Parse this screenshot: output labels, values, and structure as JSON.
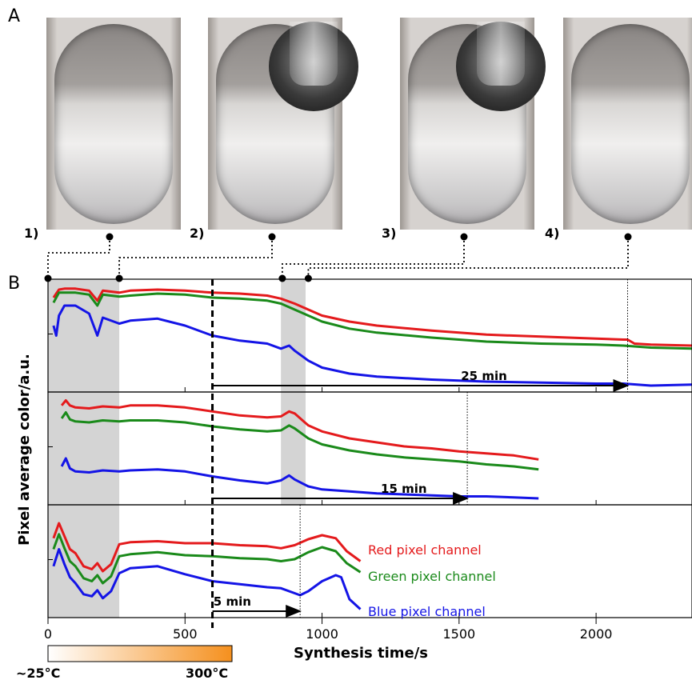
{
  "panel_labels": {
    "a": "A",
    "b": "B"
  },
  "photos": [
    {
      "label": "1)",
      "time": 137
    },
    {
      "label": "2)",
      "time": 260
    },
    {
      "label": "3)",
      "time": 855
    },
    {
      "label": "4)",
      "time": 950
    }
  ],
  "colors": {
    "red": "#e41a1c",
    "green": "#1a8a1a",
    "blue": "#1414e6",
    "shade": "#d4d4d4",
    "heat_start": "#ffffff",
    "heat_end": "#f5901e"
  },
  "legend": {
    "red": "Red pixel channel",
    "green": "Green pixel channel",
    "blue": "Blue pixel channel"
  },
  "heat_bar": {
    "low": "~25°C",
    "high": "300°C"
  },
  "chart_data": {
    "type": "line",
    "xlabel": "Synthesis time/s",
    "ylabel": "Pixel average color/a.u.",
    "xlim": [
      0,
      2350
    ],
    "xticks": [
      0,
      500,
      1000,
      1500,
      2000
    ],
    "dashed_marker": 600,
    "shaded_regions": [
      [
        0,
        260
      ],
      [
        850,
        940
      ]
    ],
    "panels": [
      {
        "annotation": "25 min",
        "arrow": [
          600,
          2115
        ],
        "dotted": 2115,
        "series": [
          {
            "name": "Red pixel channel",
            "x": [
              20,
              40,
              60,
              100,
              150,
              180,
              200,
              260,
              300,
              400,
              500,
              600,
              700,
              800,
              850,
              900,
              950,
              1000,
              1100,
              1200,
              1400,
              1600,
              1800,
              2000,
              2100,
              2115,
              2140,
              2200,
              2350
            ],
            "y": [
              0.88,
              0.96,
              0.97,
              0.97,
              0.95,
              0.85,
              0.95,
              0.93,
              0.95,
              0.96,
              0.95,
              0.93,
              0.92,
              0.9,
              0.87,
              0.82,
              0.76,
              0.7,
              0.64,
              0.6,
              0.55,
              0.51,
              0.49,
              0.47,
              0.46,
              0.46,
              0.42,
              0.41,
              0.4
            ]
          },
          {
            "name": "Green pixel channel",
            "x": [
              20,
              40,
              60,
              100,
              150,
              180,
              200,
              260,
              300,
              400,
              500,
              600,
              700,
              800,
              850,
              900,
              950,
              1000,
              1100,
              1200,
              1400,
              1600,
              1800,
              2000,
              2100,
              2200,
              2350
            ],
            "y": [
              0.83,
              0.93,
              0.93,
              0.93,
              0.91,
              0.8,
              0.91,
              0.89,
              0.9,
              0.92,
              0.91,
              0.88,
              0.87,
              0.85,
              0.82,
              0.76,
              0.7,
              0.64,
              0.57,
              0.53,
              0.48,
              0.44,
              0.42,
              0.41,
              0.4,
              0.38,
              0.37
            ]
          },
          {
            "name": "Blue pixel channel",
            "x": [
              20,
              30,
              40,
              60,
              100,
              150,
              180,
              200,
              260,
              300,
              400,
              500,
              600,
              700,
              800,
              850,
              880,
              900,
              950,
              1000,
              1100,
              1200,
              1400,
              1600,
              1800,
              2000,
              2100,
              2200,
              2350
            ],
            "y": [
              0.6,
              0.5,
              0.7,
              0.8,
              0.8,
              0.72,
              0.5,
              0.68,
              0.62,
              0.65,
              0.67,
              0.6,
              0.5,
              0.45,
              0.42,
              0.37,
              0.4,
              0.35,
              0.25,
              0.18,
              0.12,
              0.09,
              0.06,
              0.04,
              0.03,
              0.02,
              0.02,
              0.0,
              0.01
            ]
          }
        ]
      },
      {
        "annotation": "15 min",
        "arrow": [
          600,
          1530
        ],
        "dotted": 1530,
        "series": [
          {
            "name": "Red pixel channel",
            "x": [
              50,
              65,
              80,
              100,
              150,
              200,
              260,
              300,
              400,
              500,
              600,
              700,
              800,
              850,
              880,
              900,
              950,
              1000,
              1100,
              1200,
              1300,
              1400,
              1500,
              1600,
              1700,
              1790
            ],
            "y": [
              0.93,
              0.98,
              0.93,
              0.91,
              0.9,
              0.92,
              0.91,
              0.93,
              0.93,
              0.91,
              0.87,
              0.83,
              0.81,
              0.82,
              0.87,
              0.85,
              0.73,
              0.67,
              0.6,
              0.56,
              0.52,
              0.5,
              0.47,
              0.45,
              0.43,
              0.39
            ]
          },
          {
            "name": "Green pixel channel",
            "x": [
              50,
              65,
              80,
              100,
              150,
              200,
              260,
              300,
              400,
              500,
              600,
              700,
              800,
              850,
              880,
              900,
              950,
              1000,
              1100,
              1200,
              1300,
              1400,
              1500,
              1600,
              1700,
              1790
            ],
            "y": [
              0.8,
              0.86,
              0.79,
              0.77,
              0.76,
              0.78,
              0.77,
              0.78,
              0.78,
              0.76,
              0.72,
              0.69,
              0.67,
              0.68,
              0.73,
              0.7,
              0.6,
              0.54,
              0.48,
              0.44,
              0.41,
              0.39,
              0.37,
              0.34,
              0.32,
              0.29
            ]
          },
          {
            "name": "Blue pixel channel",
            "x": [
              50,
              65,
              80,
              100,
              150,
              200,
              260,
              300,
              400,
              500,
              600,
              700,
              800,
              850,
              880,
              900,
              950,
              1000,
              1100,
              1200,
              1300,
              1400,
              1500,
              1600,
              1700,
              1790
            ],
            "y": [
              0.32,
              0.4,
              0.3,
              0.27,
              0.26,
              0.28,
              0.27,
              0.28,
              0.29,
              0.27,
              0.22,
              0.18,
              0.15,
              0.18,
              0.23,
              0.19,
              0.12,
              0.09,
              0.07,
              0.05,
              0.04,
              0.03,
              0.02,
              0.02,
              0.01,
              0.0
            ]
          }
        ]
      },
      {
        "annotation": "5 min",
        "arrow": [
          600,
          920
        ],
        "dotted": 920,
        "series": [
          {
            "name": "Red pixel channel",
            "x": [
              20,
              40,
              60,
              80,
              100,
              130,
              160,
              180,
              200,
              230,
              260,
              300,
              400,
              500,
              600,
              700,
              800,
              850,
              900,
              950,
              1000,
              1050,
              1090,
              1140
            ],
            "y": [
              0.73,
              0.88,
              0.75,
              0.62,
              0.58,
              0.45,
              0.42,
              0.48,
              0.4,
              0.47,
              0.67,
              0.69,
              0.7,
              0.68,
              0.68,
              0.66,
              0.65,
              0.63,
              0.66,
              0.72,
              0.76,
              0.73,
              0.6,
              0.5
            ]
          },
          {
            "name": "Green pixel channel",
            "x": [
              20,
              40,
              60,
              80,
              100,
              130,
              160,
              180,
              200,
              230,
              260,
              300,
              400,
              500,
              600,
              700,
              800,
              850,
              900,
              950,
              1000,
              1050,
              1090,
              1140
            ],
            "y": [
              0.62,
              0.77,
              0.63,
              0.5,
              0.45,
              0.33,
              0.3,
              0.36,
              0.28,
              0.35,
              0.55,
              0.57,
              0.59,
              0.56,
              0.55,
              0.53,
              0.52,
              0.5,
              0.52,
              0.59,
              0.64,
              0.6,
              0.48,
              0.39
            ]
          },
          {
            "name": "Blue pixel channel",
            "x": [
              20,
              40,
              60,
              80,
              100,
              130,
              160,
              180,
              200,
              230,
              260,
              300,
              400,
              500,
              600,
              700,
              800,
              850,
              900,
              920,
              950,
              1000,
              1050,
              1070,
              1100,
              1140
            ],
            "y": [
              0.45,
              0.62,
              0.47,
              0.34,
              0.28,
              0.17,
              0.15,
              0.21,
              0.13,
              0.2,
              0.38,
              0.43,
              0.45,
              0.37,
              0.3,
              0.27,
              0.24,
              0.23,
              0.18,
              0.16,
              0.2,
              0.3,
              0.36,
              0.34,
              0.12,
              0.02
            ]
          }
        ]
      }
    ]
  }
}
